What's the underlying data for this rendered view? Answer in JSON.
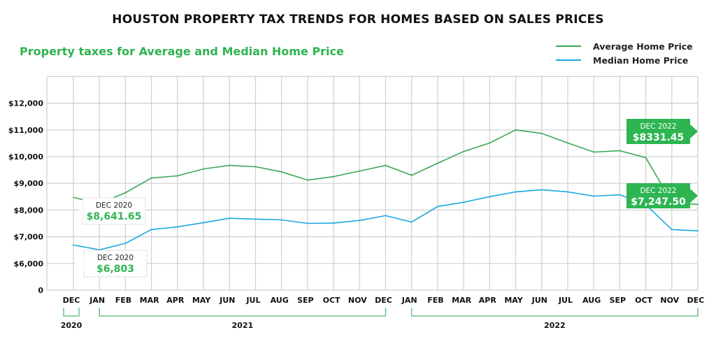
{
  "title": "HOUSTON PROPERTY TAX TRENDS FOR HOMES BASED ON SALES PRICES",
  "subtitle": "Property taxes for Average and Median Home Price",
  "colors": {
    "average": "#3aa757",
    "median": "#1ba8e0",
    "accent": "#2db552",
    "grid": "#cfcfcf"
  },
  "chart_data": {
    "type": "line",
    "x": [
      "DEC",
      "JAN",
      "FEB",
      "MAR",
      "APR",
      "MAY",
      "JUN",
      "JUL",
      "AUG",
      "SEP",
      "OCT",
      "NOV",
      "DEC",
      "JAN",
      "FEB",
      "MAR",
      "APR",
      "MAY",
      "JUN",
      "JUL",
      "AUG",
      "SEP",
      "OCT",
      "NOV",
      "DEC"
    ],
    "year_groups": [
      {
        "label": "2020",
        "from": 0,
        "to": 0
      },
      {
        "label": "2021",
        "from": 1,
        "to": 12
      },
      {
        "label": "2022",
        "from": 13,
        "to": 24
      }
    ],
    "y_ticks": [
      {
        "label": "$12,000",
        "value": 12000
      },
      {
        "label": "$11,000",
        "value": 11000
      },
      {
        "label": "$10,000",
        "value": 10000
      },
      {
        "label": "$9,000",
        "value": 9000
      },
      {
        "label": "$8,000",
        "value": 8000
      },
      {
        "label": "$7,000",
        "value": 7000
      },
      {
        "label": "$6,000",
        "value": 6000
      },
      {
        "label": "0",
        "value": 0
      }
    ],
    "axis_break": "0 placed one gridline below $6,000",
    "ylim": [
      0,
      13000
    ],
    "grid": true,
    "legend": "top-right",
    "series": [
      {
        "name": "Average Home Price",
        "values": [
          8470,
          8240,
          8650,
          9200,
          9280,
          9540,
          9670,
          9620,
          9430,
          9120,
          9250,
          9460,
          9670,
          9300,
          9750,
          10190,
          10510,
          11000,
          10870,
          10510,
          10170,
          10220,
          9960,
          8290,
          8210
        ]
      },
      {
        "name": "Median Home Price",
        "values": [
          6690,
          6510,
          6750,
          7270,
          7370,
          7530,
          7690,
          7660,
          7630,
          7500,
          7510,
          7610,
          7790,
          7550,
          8130,
          8290,
          8500,
          8680,
          8760,
          8680,
          8520,
          8570,
          8200,
          7270,
          7220
        ]
      }
    ],
    "annotations": [
      {
        "period": "DEC 2020",
        "value": "$8,641.65",
        "series": "Average Home Price"
      },
      {
        "period": "DEC 2020",
        "value": "$6,803",
        "series": "Median Home Price"
      },
      {
        "period": "DEC 2022",
        "value": "$8331.45",
        "series": "Average Home Price"
      },
      {
        "period": "DEC 2022",
        "value": "$7,247.50",
        "series": "Median Home Price"
      }
    ]
  }
}
